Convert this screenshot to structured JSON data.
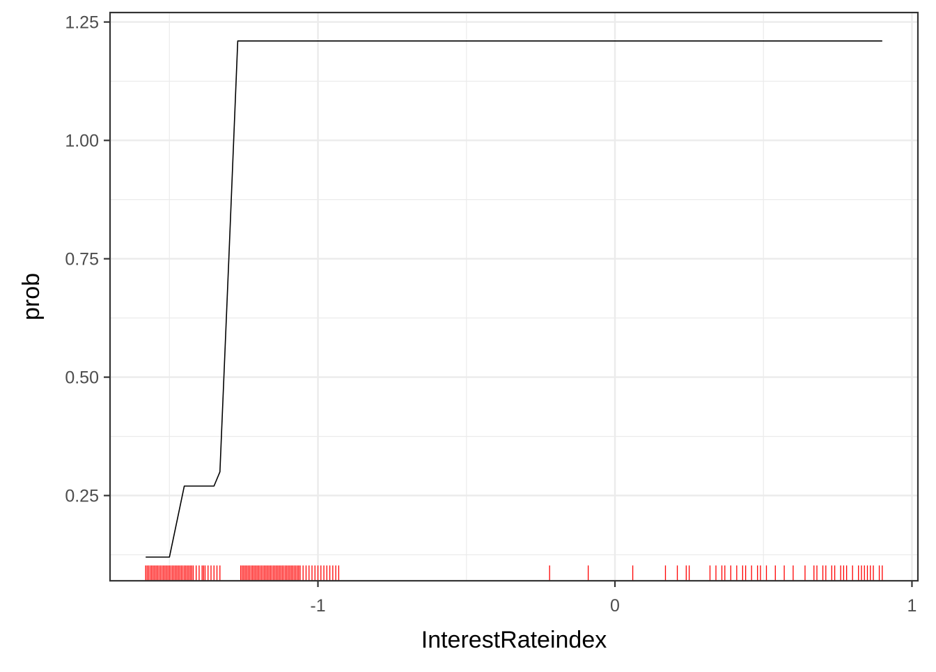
{
  "chart_data": {
    "type": "line",
    "title": "",
    "xlabel": "InterestRateindex",
    "ylabel": "prob",
    "xlim": [
      -1.7,
      1.02
    ],
    "ylim": [
      0.07,
      1.27
    ],
    "x_ticks": [
      {
        "value": -1,
        "label": "-1"
      },
      {
        "value": 0,
        "label": "0"
      },
      {
        "value": 1,
        "label": "1"
      }
    ],
    "y_ticks": [
      {
        "value": 0.25,
        "label": "0.25"
      },
      {
        "value": 0.5,
        "label": "0.50"
      },
      {
        "value": 0.75,
        "label": "0.75"
      },
      {
        "value": 1.0,
        "label": "1.00"
      },
      {
        "value": 1.25,
        "label": "1.25"
      }
    ],
    "x_minor_breaks": [
      -1.5,
      -0.5,
      0.5
    ],
    "y_minor_breaks": [
      0.125,
      0.375,
      0.625,
      0.875,
      1.125
    ],
    "grid": true,
    "series": [
      {
        "color": "#000000",
        "x": [
          -1.58,
          -1.5,
          -1.45,
          -1.35,
          -1.33,
          -1.3,
          -1.27,
          0.9
        ],
        "y": [
          0.12,
          0.12,
          0.27,
          0.27,
          0.3,
          0.75,
          1.21,
          1.21
        ]
      }
    ],
    "rug": {
      "color": "#ff0000",
      "x": [
        -1.58,
        -1.575,
        -1.57,
        -1.565,
        -1.56,
        -1.555,
        -1.55,
        -1.545,
        -1.54,
        -1.535,
        -1.53,
        -1.525,
        -1.52,
        -1.515,
        -1.51,
        -1.505,
        -1.5,
        -1.495,
        -1.49,
        -1.485,
        -1.48,
        -1.475,
        -1.47,
        -1.465,
        -1.46,
        -1.455,
        -1.45,
        -1.445,
        -1.44,
        -1.435,
        -1.43,
        -1.425,
        -1.42,
        -1.41,
        -1.4,
        -1.39,
        -1.385,
        -1.38,
        -1.37,
        -1.36,
        -1.35,
        -1.34,
        -1.33,
        -1.26,
        -1.255,
        -1.25,
        -1.245,
        -1.24,
        -1.235,
        -1.23,
        -1.225,
        -1.22,
        -1.215,
        -1.21,
        -1.205,
        -1.2,
        -1.195,
        -1.19,
        -1.185,
        -1.18,
        -1.175,
        -1.17,
        -1.165,
        -1.16,
        -1.155,
        -1.15,
        -1.145,
        -1.14,
        -1.135,
        -1.13,
        -1.125,
        -1.12,
        -1.115,
        -1.11,
        -1.105,
        -1.1,
        -1.095,
        -1.09,
        -1.085,
        -1.08,
        -1.075,
        -1.07,
        -1.065,
        -1.06,
        -1.05,
        -1.04,
        -1.03,
        -1.02,
        -1.01,
        -1.0,
        -0.99,
        -0.98,
        -0.97,
        -0.96,
        -0.95,
        -0.94,
        -0.93,
        -0.22,
        -0.09,
        0.06,
        0.17,
        0.21,
        0.24,
        0.25,
        0.32,
        0.34,
        0.36,
        0.37,
        0.39,
        0.41,
        0.43,
        0.44,
        0.46,
        0.48,
        0.49,
        0.51,
        0.54,
        0.57,
        0.6,
        0.64,
        0.67,
        0.68,
        0.7,
        0.71,
        0.73,
        0.74,
        0.76,
        0.77,
        0.78,
        0.8,
        0.82,
        0.83,
        0.84,
        0.85,
        0.86,
        0.87,
        0.89,
        0.9
      ]
    }
  }
}
